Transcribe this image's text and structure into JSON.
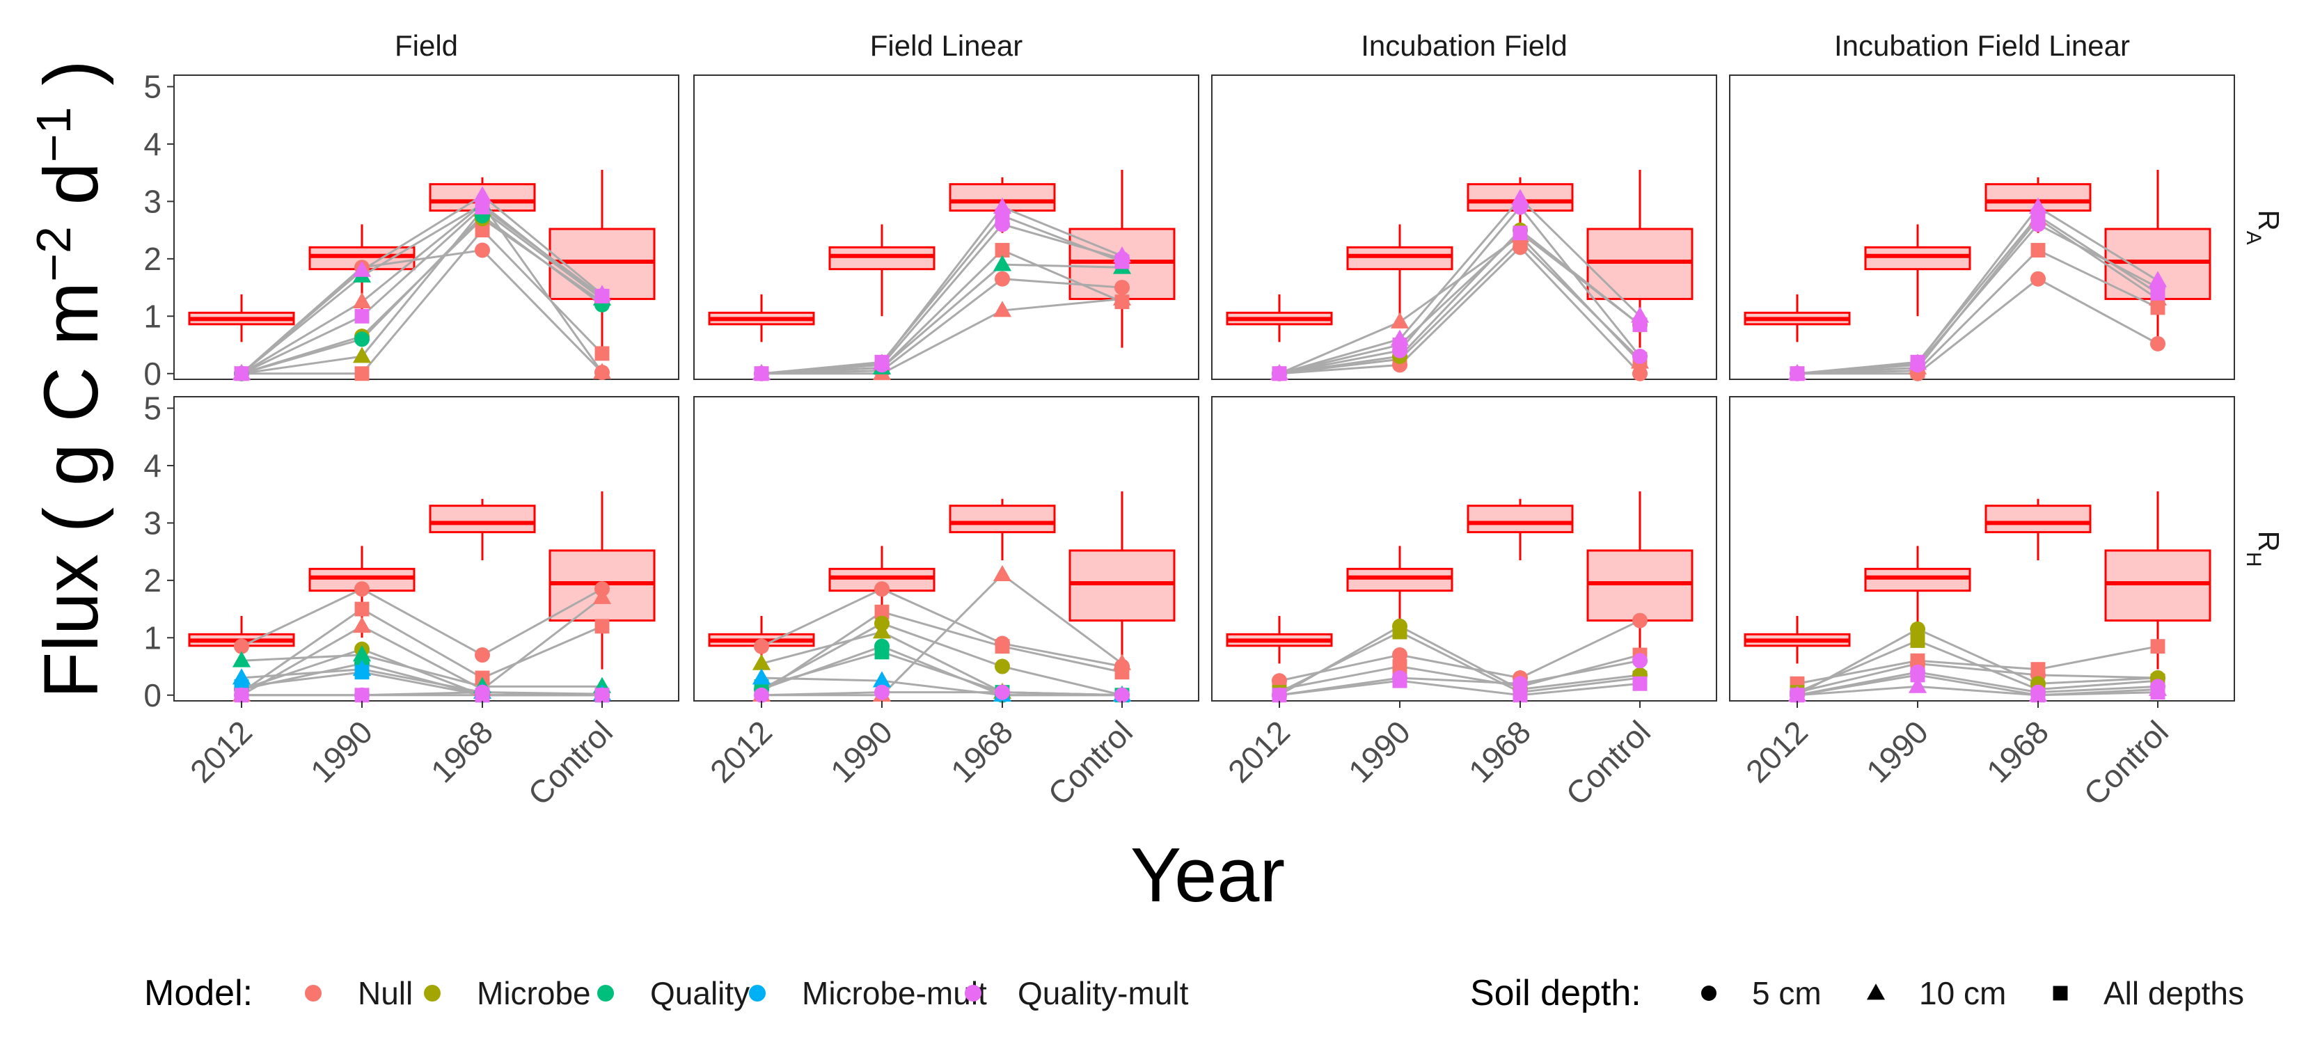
{
  "chart_data": {
    "type": "boxplot-facet",
    "facets": {
      "columns": [
        "Field",
        "Field Linear",
        "Incubation Field",
        "Incubation Field Linear"
      ],
      "rows": [
        {
          "id": "RA",
          "main": "R",
          "sub": "A"
        },
        {
          "id": "RH",
          "main": "R",
          "sub": "H"
        }
      ]
    },
    "categories": [
      "2012",
      "1990",
      "1968",
      "Control"
    ],
    "xlabel": "Year",
    "ylabel": {
      "prefix": "Flux ( g C m",
      "sup1": "−2",
      "mid": " d",
      "sup2": "−1",
      "suffix": " )"
    },
    "ylim": [
      -0.1,
      5.2
    ],
    "yticks": [
      0,
      1,
      2,
      3,
      4,
      5
    ],
    "colors": {
      "box_line": "#FF0000",
      "box_fill": "#FFC8C8",
      "gray_line": "#AAAAAA",
      "Null": "#F8766D",
      "Microbe": "#A3A500",
      "Quality": "#00BF7D",
      "Microbe-mult": "#00B0F6",
      "Quality-mult": "#E76BF3"
    },
    "boxes": {
      "RA": [
        {
          "cat": "2012",
          "wlo": 0.55,
          "q1": 0.86,
          "med": 0.95,
          "q3": 1.06,
          "whi": 1.38
        },
        {
          "cat": "1990",
          "wlo": 1.0,
          "q1": 1.82,
          "med": 2.05,
          "q3": 2.2,
          "whi": 2.6
        },
        {
          "cat": "1968",
          "wlo": 2.45,
          "q1": 2.84,
          "med": 3.0,
          "q3": 3.3,
          "whi": 3.42
        },
        {
          "cat": "Control",
          "wlo": 0.45,
          "q1": 1.3,
          "med": 1.95,
          "q3": 2.52,
          "whi": 3.55
        }
      ],
      "RH": [
        {
          "cat": "2012",
          "wlo": 0.55,
          "q1": 0.86,
          "med": 0.95,
          "q3": 1.06,
          "whi": 1.38
        },
        {
          "cat": "1990",
          "wlo": 1.0,
          "q1": 1.82,
          "med": 2.05,
          "q3": 2.2,
          "whi": 2.6
        },
        {
          "cat": "1968",
          "wlo": 2.35,
          "q1": 2.84,
          "med": 3.0,
          "q3": 3.3,
          "whi": 3.42
        },
        {
          "cat": "Control",
          "wlo": 0.45,
          "q1": 1.3,
          "med": 1.95,
          "q3": 2.52,
          "whi": 3.55
        }
      ]
    },
    "trajectories": {
      "RA": {
        "Field": [
          {
            "model": "Null",
            "shape": "circle",
            "values": [
              0,
              1.85,
              2.15,
              0.02
            ]
          },
          {
            "model": "Null",
            "shape": "triangle",
            "values": [
              0,
              1.25,
              2.95,
              0.02
            ]
          },
          {
            "model": "Null",
            "shape": "square",
            "values": [
              0,
              0.0,
              2.5,
              0.35
            ]
          },
          {
            "model": "Microbe",
            "shape": "circle",
            "values": [
              0,
              0.65,
              2.7,
              1.25
            ]
          },
          {
            "model": "Microbe",
            "shape": "triangle",
            "values": [
              0,
              0.3,
              2.85,
              1.3
            ]
          },
          {
            "model": "Quality",
            "shape": "circle",
            "values": [
              0,
              0.6,
              2.75,
              1.2
            ]
          },
          {
            "model": "Quality",
            "shape": "triangle",
            "values": [
              0,
              1.7,
              2.95,
              1.3
            ]
          },
          {
            "model": "Quality-mult",
            "shape": "triangle",
            "values": [
              0,
              1.8,
              3.1,
              1.38
            ]
          },
          {
            "model": "Quality-mult",
            "shape": "square",
            "values": [
              0,
              1.0,
              2.9,
              1.35
            ]
          }
        ],
        "Field Linear": [
          {
            "model": "Null",
            "shape": "triangle",
            "values": [
              0,
              0.0,
              1.1,
              1.3
            ]
          },
          {
            "model": "Null",
            "shape": "circle",
            "values": [
              0,
              0.05,
              1.65,
              1.5
            ]
          },
          {
            "model": "Null",
            "shape": "square",
            "values": [
              0,
              0.1,
              2.15,
              1.25
            ]
          },
          {
            "model": "Quality",
            "shape": "triangle",
            "values": [
              0,
              0.1,
              1.9,
              1.85
            ]
          },
          {
            "model": "Quality-mult",
            "shape": "circle",
            "values": [
              0,
              0.15,
              2.6,
              2.0
            ]
          },
          {
            "model": "Quality-mult",
            "shape": "triangle",
            "values": [
              0,
              0.18,
              2.9,
              2.05
            ]
          },
          {
            "model": "Quality-mult",
            "shape": "square",
            "values": [
              0,
              0.2,
              2.75,
              1.95
            ]
          }
        ],
        "Incubation Field": [
          {
            "model": "Null",
            "shape": "circle",
            "values": [
              0,
              0.15,
              2.2,
              0.0
            ]
          },
          {
            "model": "Null",
            "shape": "triangle",
            "values": [
              0,
              0.9,
              2.4,
              0.2
            ]
          },
          {
            "model": "Null",
            "shape": "square",
            "values": [
              0,
              0.25,
              2.3,
              0.25
            ]
          },
          {
            "model": "Microbe",
            "shape": "circle",
            "values": [
              0,
              0.3,
              2.5,
              0.85
            ]
          },
          {
            "model": "Quality-mult",
            "shape": "circle",
            "values": [
              0,
              0.4,
              2.9,
              0.3
            ]
          },
          {
            "model": "Quality-mult",
            "shape": "triangle",
            "values": [
              0,
              0.6,
              3.05,
              1.0
            ]
          },
          {
            "model": "Quality-mult",
            "shape": "square",
            "values": [
              0,
              0.5,
              2.45,
              0.85
            ]
          }
        ],
        "Incubation Field Linear": [
          {
            "model": "Null",
            "shape": "circle",
            "values": [
              0,
              0.0,
              1.65,
              0.52
            ]
          },
          {
            "model": "Null",
            "shape": "square",
            "values": [
              0,
              0.05,
              2.15,
              1.15
            ]
          },
          {
            "model": "Null",
            "shape": "triangle",
            "values": [
              0,
              0.1,
              2.7,
              1.3
            ]
          },
          {
            "model": "Quality-mult",
            "shape": "circle",
            "values": [
              0,
              0.15,
              2.6,
              1.5
            ]
          },
          {
            "model": "Quality-mult",
            "shape": "triangle",
            "values": [
              0,
              0.18,
              2.9,
              1.62
            ]
          },
          {
            "model": "Quality-mult",
            "shape": "square",
            "values": [
              0,
              0.2,
              2.75,
              1.4
            ]
          }
        ]
      },
      "RH": {
        "Field": [
          {
            "model": "Null",
            "shape": "circle",
            "values": [
              0.85,
              1.85,
              0.7,
              1.85
            ]
          },
          {
            "model": "Null",
            "shape": "square",
            "values": [
              0.05,
              1.5,
              0.3,
              1.2
            ]
          },
          {
            "model": "Null",
            "shape": "triangle",
            "values": [
              0.0,
              1.2,
              0.1,
              1.7
            ]
          },
          {
            "model": "Microbe",
            "shape": "circle",
            "values": [
              0.1,
              0.8,
              0.0,
              0.0
            ]
          },
          {
            "model": "Quality",
            "shape": "triangle",
            "values": [
              0.6,
              0.7,
              0.15,
              0.15
            ]
          },
          {
            "model": "Quality",
            "shape": "circle",
            "values": [
              0.1,
              0.55,
              0.0,
              0.0
            ]
          },
          {
            "model": "Microbe-mult",
            "shape": "triangle",
            "values": [
              0.3,
              0.45,
              0.05,
              0.02
            ]
          },
          {
            "model": "Microbe-mult",
            "shape": "square",
            "values": [
              0.15,
              0.4,
              0.0,
              0.0
            ]
          },
          {
            "model": "Quality-mult",
            "shape": "circle",
            "values": [
              0.0,
              0.0,
              0.05,
              0.0
            ]
          },
          {
            "model": "Quality-mult",
            "shape": "square",
            "values": [
              0.0,
              0.0,
              0.0,
              0.0
            ]
          }
        ],
        "Field Linear": [
          {
            "model": "Null",
            "shape": "circle",
            "values": [
              0.85,
              1.85,
              0.9,
              0.5
            ]
          },
          {
            "model": "Null",
            "shape": "square",
            "values": [
              0.05,
              1.45,
              0.85,
              0.4
            ]
          },
          {
            "model": "Null",
            "shape": "triangle",
            "values": [
              0.0,
              0.0,
              2.1,
              0.55
            ]
          },
          {
            "model": "Microbe",
            "shape": "circle",
            "values": [
              0.1,
              1.25,
              0.5,
              0.0
            ]
          },
          {
            "model": "Microbe",
            "shape": "triangle",
            "values": [
              0.55,
              1.1,
              0.05,
              0.0
            ]
          },
          {
            "model": "Quality",
            "shape": "circle",
            "values": [
              0.1,
              0.85,
              0.0,
              0.0
            ]
          },
          {
            "model": "Quality",
            "shape": "square",
            "values": [
              0.15,
              0.75,
              0.05,
              0.0
            ]
          },
          {
            "model": "Microbe-mult",
            "shape": "triangle",
            "values": [
              0.3,
              0.25,
              0.0,
              0.0
            ]
          },
          {
            "model": "Quality-mult",
            "shape": "circle",
            "values": [
              0.0,
              0.05,
              0.05,
              0.0
            ]
          }
        ],
        "Incubation Field": [
          {
            "model": "Null",
            "shape": "circle",
            "values": [
              0.25,
              0.7,
              0.3,
              1.3
            ]
          },
          {
            "model": "Null",
            "shape": "square",
            "values": [
              0.1,
              0.5,
              0.15,
              0.7
            ]
          },
          {
            "model": "Microbe",
            "shape": "circle",
            "values": [
              0.0,
              1.2,
              0.1,
              0.35
            ]
          },
          {
            "model": "Microbe",
            "shape": "square",
            "values": [
              0.05,
              1.1,
              0.05,
              0.3
            ]
          },
          {
            "model": "Quality-mult",
            "shape": "circle",
            "values": [
              0.0,
              0.3,
              0.2,
              0.6
            ]
          },
          {
            "model": "Quality-mult",
            "shape": "square",
            "values": [
              0.0,
              0.25,
              0.0,
              0.2
            ]
          }
        ],
        "Incubation Field Linear": [
          {
            "model": "Null",
            "shape": "square",
            "values": [
              0.2,
              0.6,
              0.45,
              0.85
            ]
          },
          {
            "model": "Null",
            "shape": "circle",
            "values": [
              0.05,
              0.55,
              0.35,
              0.3
            ]
          },
          {
            "model": "Microbe",
            "shape": "circle",
            "values": [
              0.0,
              1.15,
              0.2,
              0.3
            ]
          },
          {
            "model": "Microbe",
            "shape": "square",
            "values": [
              0.05,
              0.95,
              0.1,
              0.25
            ]
          },
          {
            "model": "Quality-mult",
            "shape": "circle",
            "values": [
              0.0,
              0.4,
              0.05,
              0.15
            ]
          },
          {
            "model": "Quality-mult",
            "shape": "triangle",
            "values": [
              0.0,
              0.15,
              0.0,
              0.1
            ]
          },
          {
            "model": "Quality-mult",
            "shape": "square",
            "values": [
              0.0,
              0.35,
              0.0,
              0.05
            ]
          }
        ]
      }
    },
    "legend": {
      "position": "bottom",
      "model_title": "Model:",
      "models": [
        "Null",
        "Microbe",
        "Quality",
        "Microbe-mult",
        "Quality-mult"
      ],
      "depth_title": "Soil depth:",
      "depths": [
        {
          "label": "5 cm",
          "shape": "circle"
        },
        {
          "label": "10 cm",
          "shape": "triangle"
        },
        {
          "label": "All depths",
          "shape": "square"
        }
      ]
    }
  }
}
